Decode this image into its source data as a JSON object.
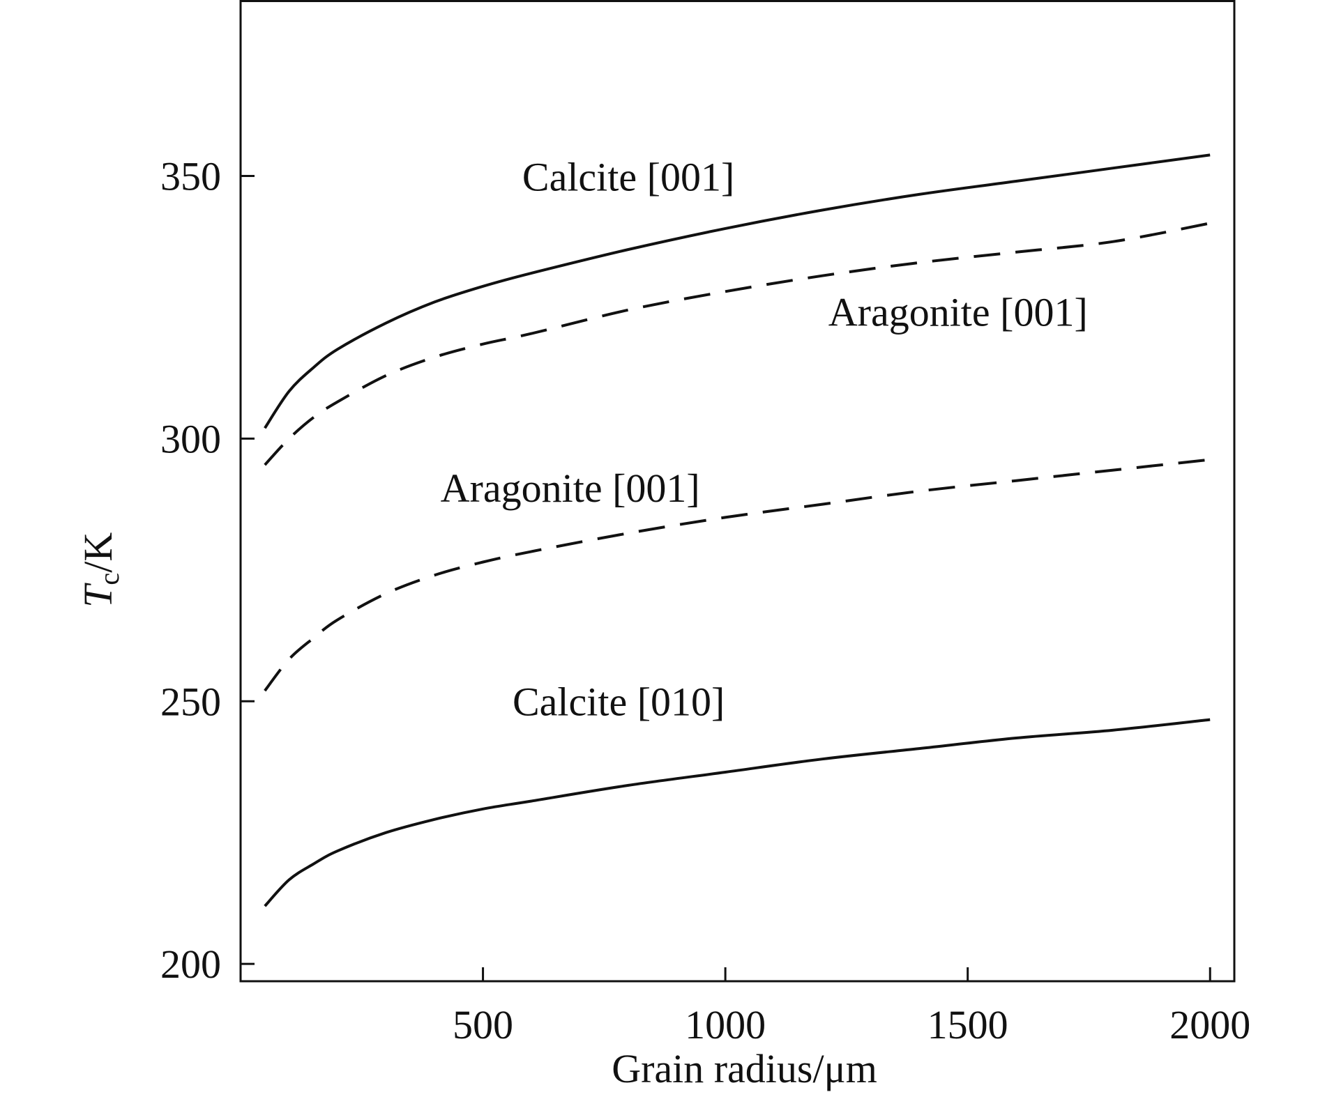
{
  "chart_data": {
    "type": "line",
    "title": "",
    "xlabel": "Grain radius/μm",
    "ylabel_main": "T",
    "ylabel_sub": "c",
    "ylabel_rest": "/K",
    "xlim": [
      0,
      2050
    ],
    "ylim": [
      196.7,
      383.5
    ],
    "xticks": [
      500,
      1000,
      1500,
      2000
    ],
    "yticks": [
      200,
      250,
      300,
      350
    ],
    "grid": false,
    "legend": "none",
    "line_color": "#111111",
    "series": [
      {
        "name": "Calcite [001]",
        "label": "Calcite [001]",
        "style": "solid",
        "x": [
          50,
          100,
          150,
          200,
          300,
          400,
          500,
          600,
          800,
          1000,
          1200,
          1400,
          1600,
          1800,
          2000
        ],
        "y": [
          302,
          309,
          313.5,
          317,
          322,
          326,
          329,
          331.5,
          336,
          340,
          343.5,
          346.5,
          349,
          351.5,
          354
        ]
      },
      {
        "name": "Aragonite [001] (upper)",
        "label": "Aragonite [001]",
        "style": "dashed",
        "x": [
          50,
          100,
          150,
          200,
          300,
          400,
          500,
          600,
          800,
          1000,
          1200,
          1400,
          1600,
          1800,
          2000
        ],
        "y": [
          295,
          300,
          304,
          307,
          312,
          315.5,
          318,
          320,
          324.5,
          328,
          331,
          333.5,
          335.5,
          337.5,
          341
        ]
      },
      {
        "name": "Aragonite [001] (lower)",
        "label": "Aragonite [001]",
        "style": "dashed",
        "x": [
          50,
          100,
          150,
          200,
          300,
          400,
          500,
          600,
          800,
          1000,
          1200,
          1400,
          1600,
          1800,
          2000
        ],
        "y": [
          252,
          258,
          262,
          265.5,
          270.5,
          274,
          276.5,
          278.5,
          282,
          285,
          287.5,
          290,
          292,
          294,
          296
        ]
      },
      {
        "name": "Calcite [010]",
        "label": "Calcite [010]",
        "style": "solid",
        "x": [
          50,
          100,
          150,
          200,
          300,
          400,
          500,
          600,
          800,
          1000,
          1200,
          1400,
          1600,
          1800,
          2000
        ],
        "y": [
          211,
          216,
          219,
          221.5,
          225,
          227.5,
          229.5,
          231,
          234,
          236.5,
          239,
          241,
          243,
          244.5,
          246.5
        ]
      }
    ]
  }
}
